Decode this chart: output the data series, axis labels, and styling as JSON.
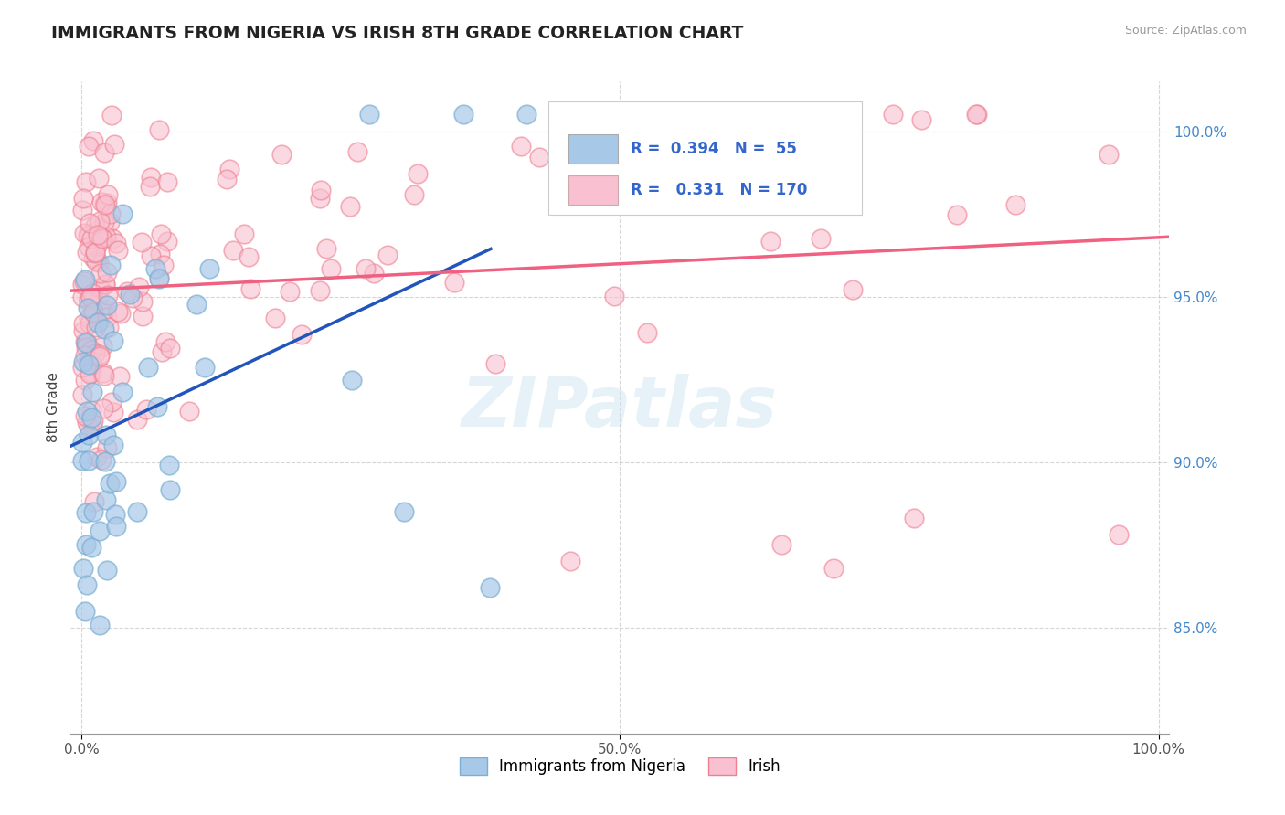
{
  "title": "IMMIGRANTS FROM NIGERIA VS IRISH 8TH GRADE CORRELATION CHART",
  "source": "Source: ZipAtlas.com",
  "ylabel": "8th Grade",
  "y_tick_labels": [
    "85.0%",
    "90.0%",
    "95.0%",
    "100.0%"
  ],
  "y_tick_values": [
    0.85,
    0.9,
    0.95,
    1.0
  ],
  "x_range": [
    -0.01,
    1.01
  ],
  "y_range": [
    0.818,
    1.015
  ],
  "blue_face_color": "#a8c8e8",
  "blue_edge_color": "#7aafd4",
  "pink_face_color": "#f8c0d0",
  "pink_edge_color": "#f08090",
  "blue_line_color": "#2255bb",
  "pink_line_color": "#f06080",
  "watermark": "ZIPatlas",
  "legend_r1": "R =  0.394   N =  55",
  "legend_r2": "R =   0.331   N = 170",
  "legend_label1": "Immigrants from Nigeria",
  "legend_label2": "Irish",
  "nigeria_seed": 123,
  "irish_seed": 456
}
